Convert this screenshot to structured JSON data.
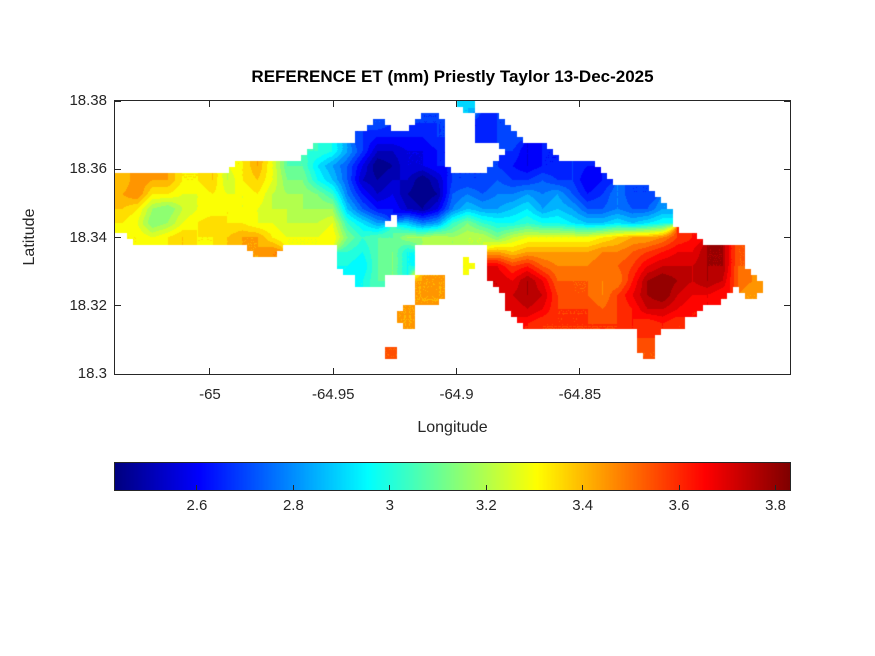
{
  "figure": {
    "background": "#ffffff",
    "kind": "matlab-style-figure"
  },
  "layout_colors": {
    "axis": "#262626",
    "title": "#000000",
    "tick_label": "#262626"
  },
  "chart_data": {
    "type": "heatmap",
    "subtype": "filled-contour-map",
    "title": "REFERENCE ET (mm) Priestly Taylor 13-Dec-2025",
    "xlabel": "Longitude",
    "ylabel": "Latitude",
    "grid_lines": false,
    "x_axis": {
      "range": [
        -65.0385,
        -64.7648
      ],
      "tick_values": [
        -65,
        -64.95,
        -64.9,
        -64.85
      ],
      "tick_labels": [
        "-65",
        "-64.95",
        "-64.9",
        "-64.85"
      ]
    },
    "y_axis": {
      "range": [
        18.3,
        18.38
      ],
      "tick_values": [
        18.38,
        18.36,
        18.34,
        18.32,
        18.3
      ],
      "tick_labels": [
        "18.38",
        "18.36",
        "18.34",
        "18.32",
        "18.3"
      ]
    },
    "colormap": "jet",
    "color_axis": {
      "min": 2.43,
      "max": 3.83,
      "units": "mm"
    },
    "contour_interval": 0.05,
    "colorbar": {
      "orientation": "horizontal",
      "position": "south",
      "tick_values": [
        2.6,
        2.8,
        3,
        3.2,
        3.4,
        3.6,
        3.8
      ],
      "tick_labels": [
        "2.6",
        "2.8",
        "3",
        "3.2",
        "3.4",
        "3.6",
        "3.8"
      ]
    },
    "grid": {
      "cols": 45,
      "rows": 19,
      "sea_char": ".",
      "value_encoding": "ET mm = 2.425 + 0.05 * index_of(char in '0123456789ABCDEFGHIJKLMNOPQRS'); '.' = sea (no data)",
      "rows_data": [
        ".......................9.....................",
        ".................6..55..45...................",
        "................544445..456..................",
        ".............CB8522334....534................",
        "........IKHDDA86301334...5434454.............",
        "JLKKIIJGIJHEEB9621220255565565534............",
        "KLIIHHIHHIGFFEC742310167677878645755.........",
        "JIFEGHHIHHGGFFF964421379889A898667668........",
        "IHEFHIJIIHHGGGHCA8.978CECBBCBBA99A9AB........",
        ".IHIJIIJKKIHHHIECDDFFGFGGEGHHHHHIJKKLNO......",
        ".........KL....CBDEB.....KJKKKKKLLMNOPPRRM...",
        "...............BADEB...H.PNOMLLLMMNPQQQRRM...",
        "................BD..KK...QPRPMMMLLORSRQRQML..",
        "....................KK....QRQNMMLNPRSQPPO.K..",
        "...................K......PQPNNNMNOQQPO......",
        "...................K.......ONNNNNNONON.......",
        "...................................N.........",
        "..................M................M.........",
        "............................................."
      ]
    }
  }
}
